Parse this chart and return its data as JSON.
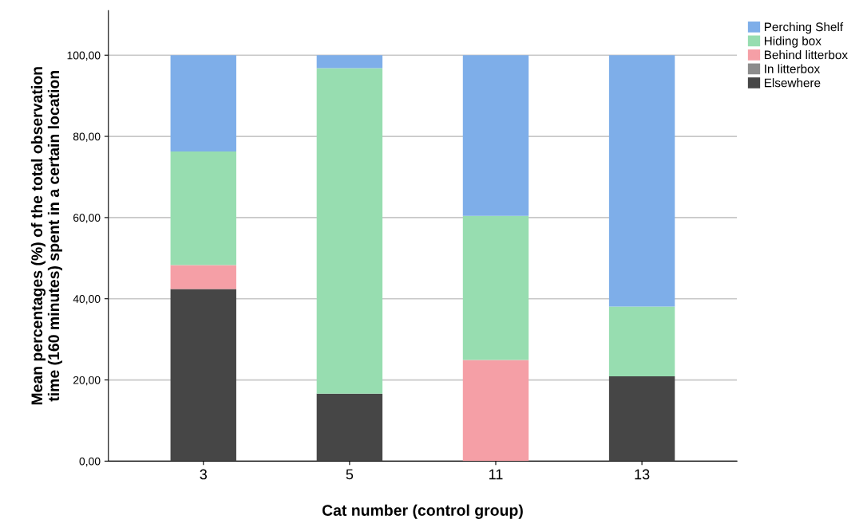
{
  "chart_data": {
    "type": "bar",
    "stacked": true,
    "xlabel": "Cat number (control group)",
    "ylabel": "Mean percentages (%) of the total observation\ntime (160 minutes) spent in a certain location",
    "categories": [
      "3",
      "5",
      "11",
      "13"
    ],
    "series": [
      {
        "name": "Elsewhere",
        "color": "#464646",
        "values": [
          42.4,
          16.6,
          0,
          20.9
        ]
      },
      {
        "name": "In litterbox",
        "color": "#8c8c8c",
        "values": [
          0,
          0,
          0,
          0
        ]
      },
      {
        "name": "Behind litterbox",
        "color": "#f59fa6",
        "values": [
          5.9,
          0,
          24.9,
          0
        ]
      },
      {
        "name": "Hiding box",
        "color": "#97ddb0",
        "values": [
          28.0,
          80.2,
          35.5,
          17.2
        ]
      },
      {
        "name": "Perching Shelf",
        "color": "#7eaee9",
        "values": [
          23.7,
          3.2,
          39.6,
          61.9
        ]
      }
    ],
    "ylim": [
      0,
      111
    ],
    "yticks": [
      {
        "value": 0,
        "label": "0,00"
      },
      {
        "value": 20,
        "label": "20,00"
      },
      {
        "value": 40,
        "label": "40,00"
      },
      {
        "value": 60,
        "label": "60,00"
      },
      {
        "value": 80,
        "label": "80,00"
      },
      {
        "value": 100,
        "label": "100,00"
      }
    ],
    "grid": "y",
    "legend": "top right"
  }
}
